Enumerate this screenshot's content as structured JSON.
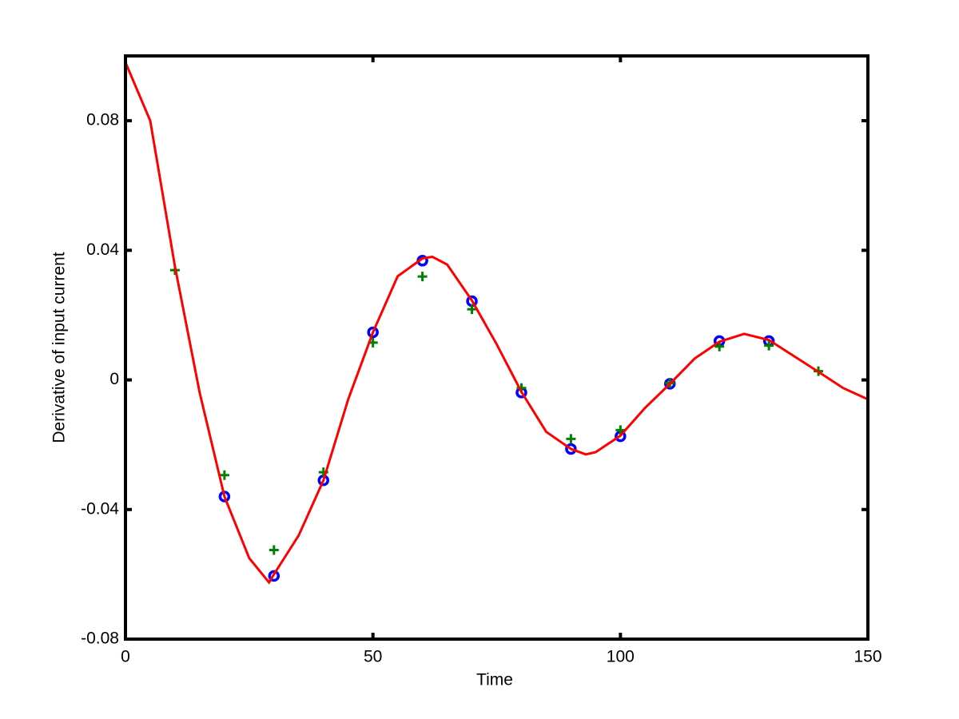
{
  "chart_data": {
    "type": "line",
    "xlabel": "Time",
    "ylabel": "Derivative of input current",
    "xlim": [
      0,
      150
    ],
    "ylim": [
      -0.08,
      0.1
    ],
    "xticks": [
      0,
      50,
      100,
      150
    ],
    "yticks": [
      -0.08,
      -0.04,
      0,
      0.04,
      0.08
    ],
    "series": [
      {
        "marker": "o",
        "color": "#0000ff",
        "x": [
          20,
          30,
          40,
          50,
          60,
          70,
          80,
          90,
          100,
          110,
          120,
          130
        ],
        "values": [
          -0.036,
          -0.0605,
          -0.031,
          0.0147,
          0.0368,
          0.0243,
          -0.0039,
          -0.0213,
          -0.0174,
          -0.0012,
          0.012,
          0.012
        ]
      },
      {
        "marker": "+",
        "color": "#008000",
        "x": [
          10,
          20,
          30,
          40,
          50,
          60,
          70,
          80,
          90,
          100,
          110,
          120,
          130,
          140
        ],
        "values": [
          0.0339,
          -0.0294,
          -0.0525,
          -0.0285,
          0.0115,
          0.0319,
          0.0218,
          -0.0025,
          -0.0182,
          -0.0155,
          -0.001,
          0.0103,
          0.0106,
          0.0027
        ]
      },
      {
        "marker": "none",
        "color": "#ff0000",
        "x": [
          0,
          5,
          10,
          15,
          20,
          25,
          29,
          30,
          35,
          40,
          45,
          50,
          55,
          60,
          62,
          65,
          70,
          75,
          80,
          85,
          90,
          93,
          95,
          100,
          105,
          110,
          115,
          120,
          125,
          130,
          135,
          140,
          145,
          150
        ],
        "values": [
          0.098,
          0.08,
          0.035,
          -0.004,
          -0.036,
          -0.055,
          -0.0625,
          -0.06,
          -0.048,
          -0.031,
          -0.006,
          0.0147,
          0.032,
          0.0375,
          0.038,
          0.0356,
          0.0245,
          0.011,
          -0.0037,
          -0.016,
          -0.0213,
          -0.023,
          -0.0223,
          -0.0172,
          -0.0086,
          -0.0012,
          0.0066,
          0.0118,
          0.0142,
          0.0123,
          0.0074,
          0.0025,
          -0.0025,
          -0.006
        ]
      }
    ]
  }
}
